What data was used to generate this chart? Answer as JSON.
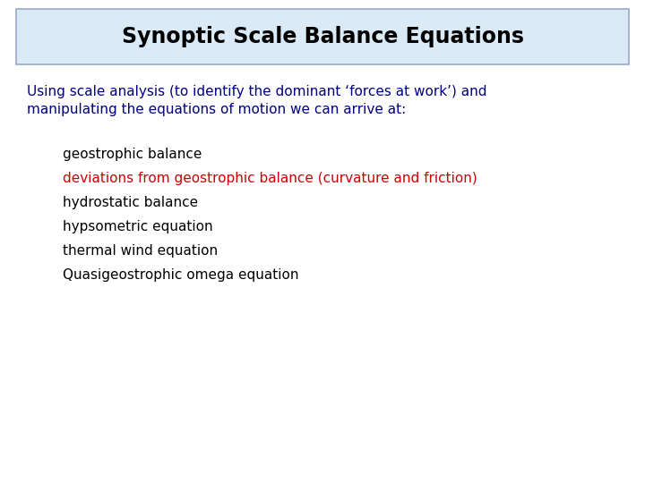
{
  "title": "Synoptic Scale Balance Equations",
  "title_color": "#000000",
  "title_fontsize": 17,
  "title_bold": true,
  "title_box_bg": "#daeaf7",
  "title_box_edge": "#99aacc",
  "body_text_line1": "Using scale analysis (to identify the dominant ‘forces at work’) and",
  "body_text_line2": "manipulating the equations of motion we can arrive at:",
  "body_color": "#000080",
  "body_fontsize": 11,
  "body_bold": false,
  "bullet_items": [
    "geostrophic balance",
    "deviations from geostrophic balance (curvature and friction)",
    "hydrostatic balance",
    "hypsometric equation",
    "thermal wind equation",
    "Quasigeostrophic omega equation"
  ],
  "bullet_colors": [
    "#000000",
    "#cc0000",
    "#000000",
    "#000000",
    "#000000",
    "#000000"
  ],
  "bullet_fontsize": 11,
  "bullet_bold": false,
  "bg_color": "#ffffff"
}
